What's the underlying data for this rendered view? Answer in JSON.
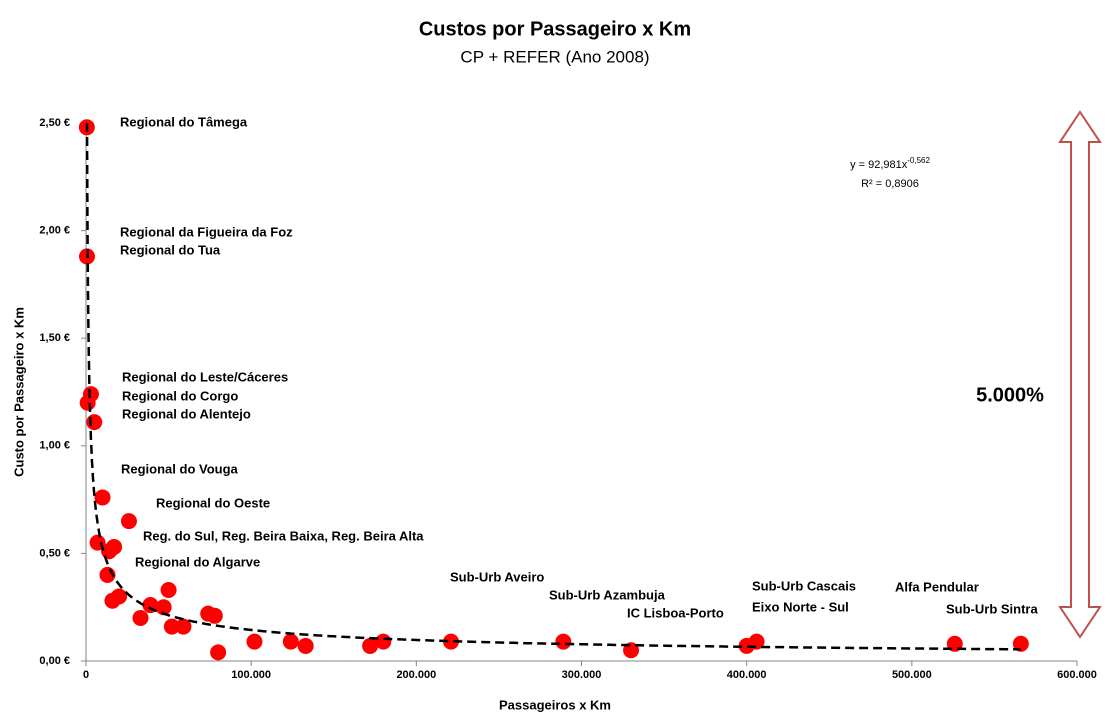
{
  "chart_data": {
    "type": "scatter",
    "title": "Custos por Passageiro x Km",
    "subtitle": "CP + REFER (Ano 2008)",
    "x_label": "Passageiros x Km",
    "y_label": "Custo por Passageiro x Km",
    "color": "#ff0000",
    "xlim": [
      0,
      600000
    ],
    "ylim": [
      0,
      2.5
    ],
    "xticks": [
      0,
      {
        "value": 100000,
        "label": "100.000"
      },
      {
        "value": 200000,
        "label": "200.000"
      },
      {
        "value": 300000,
        "label": "300.000"
      },
      {
        "value": 400000,
        "label": "400.000"
      },
      {
        "value": 500000,
        "label": "500.000"
      },
      {
        "value": 600000,
        "label": "600.000"
      }
    ],
    "yticks": [
      {
        "value": 0,
        "label": "0,00 €"
      },
      {
        "value": 0.5,
        "label": "0,50 €"
      },
      {
        "value": 1,
        "label": "1,00 €"
      },
      {
        "value": 1.5,
        "label": "1,50 €"
      },
      {
        "value": 2,
        "label": "2,00 €"
      },
      {
        "value": 2.5,
        "label": "2,50 €"
      }
    ],
    "x": [
      500,
      600,
      1000,
      3000,
      5000,
      10000,
      7000,
      17000,
      14000,
      13000,
      26000,
      16000,
      20000,
      33000,
      39000,
      47000,
      50000,
      52000,
      59000,
      74000,
      78000,
      80000,
      102000,
      124000,
      133000,
      172000,
      180000,
      221000,
      289000,
      330000,
      400000,
      406000,
      526000,
      566000
    ],
    "values": [
      2.48,
      1.88,
      1.2,
      1.24,
      1.11,
      0.76,
      0.55,
      0.53,
      0.51,
      0.4,
      0.65,
      0.28,
      0.3,
      0.2,
      0.26,
      0.25,
      0.33,
      0.16,
      0.16,
      0.22,
      0.21,
      0.04,
      0.09,
      0.09,
      0.07,
      0.07,
      0.09,
      0.09,
      0.09,
      0.05,
      0.07,
      0.09,
      0.08,
      0.08
    ],
    "trendline": {
      "a": 92.981,
      "b": -0.562,
      "label": "y = 92,981x",
      "exponent_label": "-0,562",
      "r2_label": "R² = 0,8906"
    },
    "annotations": [
      "Regional do Tâmega",
      "Regional da Figueira da Foz",
      "Regional do Tua",
      "Regional do Leste/Cáceres",
      "Regional do Corgo",
      "Regional do Alentejo",
      "Regional do Vouga",
      "Regional do Oeste",
      "Reg. do Sul, Reg. Beira Baixa, Reg. Beira Alta",
      "Regional do Algarve",
      "Sub-Urb Aveiro",
      "Sub-Urb Azambuja",
      "IC Lisboa-Porto",
      "Sub-Urb Cascais",
      "Eixo Norte - Sul",
      "Alfa Pendular",
      "Sub-Urb Sintra"
    ],
    "range_label": "5.000%"
  }
}
